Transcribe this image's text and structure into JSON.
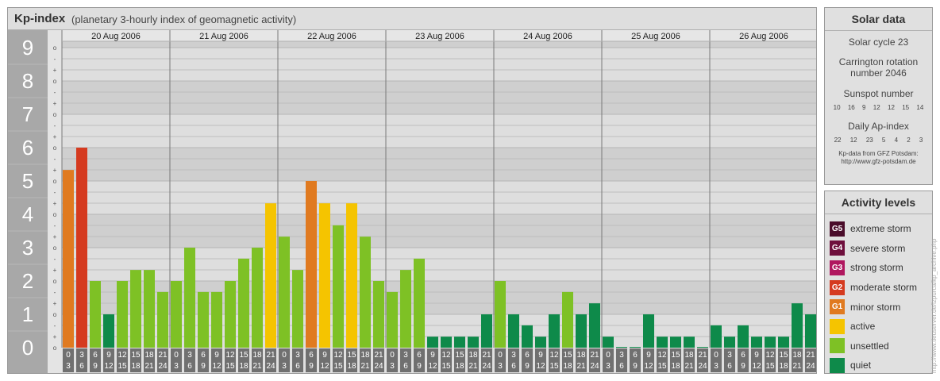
{
  "header": {
    "title": "Kp-index",
    "subtitle": "(planetary 3-hourly index of geomagnetic activity)"
  },
  "chart_data": {
    "type": "bar",
    "title": "Kp-index",
    "subtitle": "(planetary 3-hourly index of geomagnetic activity)",
    "ylim": [
      0,
      9
    ],
    "y_ticks": [
      "0",
      "1",
      "2",
      "3",
      "4",
      "5",
      "6",
      "7",
      "8",
      "9"
    ],
    "y_minor_ticks": [
      "o",
      "+",
      "-"
    ],
    "days": [
      "20 Aug 2006",
      "21 Aug 2006",
      "22 Aug 2006",
      "23 Aug 2006",
      "24 Aug 2006",
      "25 Aug 2006",
      "26 Aug 2006"
    ],
    "interval_starts": [
      "0",
      "3",
      "6",
      "9",
      "12",
      "15",
      "18",
      "21"
    ],
    "interval_ends": [
      "3",
      "6",
      "9",
      "12",
      "15",
      "18",
      "21",
      "24"
    ],
    "values": [
      [
        5.33,
        6.0,
        2.0,
        1.0,
        2.0,
        2.33,
        2.33,
        1.67
      ],
      [
        2.0,
        3.0,
        1.67,
        1.67,
        2.0,
        2.67,
        3.0,
        4.33
      ],
      [
        3.33,
        2.33,
        5.0,
        4.33,
        3.67,
        4.33,
        3.33,
        2.0
      ],
      [
        1.67,
        2.33,
        2.67,
        0.33,
        0.33,
        0.33,
        0.33,
        1.0
      ],
      [
        2.0,
        1.0,
        0.67,
        0.33,
        1.0,
        1.67,
        1.0,
        1.33
      ],
      [
        0.33,
        0.0,
        0.0,
        1.0,
        0.33,
        0.33,
        0.33,
        0.0
      ],
      [
        0.67,
        0.33,
        0.67,
        0.33,
        0.33,
        0.33,
        1.33,
        1.0
      ]
    ],
    "colors": {
      "quiet": "#0e8a4a",
      "unsettled": "#7ec125",
      "active": "#f5c400",
      "G1": "#e07a20",
      "G2": "#d53a1f"
    },
    "grid": true
  },
  "solar": {
    "title": "Solar data",
    "cycle": "Solar cycle 23",
    "carrington_l1": "Carrington rotation",
    "carrington_l2": "number 2046",
    "sunspot_label": "Sunspot number",
    "sunspot_values": [
      "10",
      "16",
      "9",
      "12",
      "12",
      "15",
      "14"
    ],
    "ap_label": "Daily Ap-index",
    "ap_values": [
      "22",
      "12",
      "23",
      "5",
      "4",
      "2",
      "3"
    ],
    "source_l1": "Kp-data from GFZ Potsdam:",
    "source_l2": "http://www.gfz-potsdam.de"
  },
  "activity": {
    "title": "Activity levels",
    "items": [
      {
        "code": "G5",
        "label": "extreme storm",
        "color": "#4a0c2a"
      },
      {
        "code": "G4",
        "label": "severe storm",
        "color": "#6e0f3c"
      },
      {
        "code": "G3",
        "label": "strong storm",
        "color": "#b0175f"
      },
      {
        "code": "G2",
        "label": "moderate storm",
        "color": "#d53a1f"
      },
      {
        "code": "G1",
        "label": "minor storm",
        "color": "#e07a20"
      },
      {
        "code": "",
        "label": "active",
        "color": "#f5c400"
      },
      {
        "code": "",
        "label": "unsettled",
        "color": "#7ec125"
      },
      {
        "code": "",
        "label": "quiet",
        "color": "#0e8a4a"
      }
    ]
  },
  "watermark": "http://www.tieuserver.de/lzpurca/kp_archive.php"
}
